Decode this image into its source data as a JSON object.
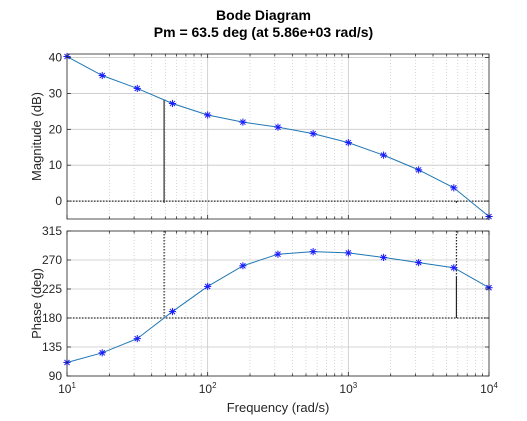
{
  "title": "Bode Diagram",
  "subtitle": "Pm = 63.5 deg (at 5.86e+03 rad/s)",
  "chart_data": [
    {
      "type": "line",
      "name": "magnitude",
      "ylabel": "Magnitude (dB)",
      "xscale": "log",
      "xlim": [
        10,
        10000
      ],
      "ylim": [
        -5,
        41
      ],
      "yticks": [
        "0",
        "10",
        "20",
        "30",
        "40"
      ],
      "ytick_values": [
        0,
        10,
        20,
        30,
        40
      ],
      "grid": true,
      "x": [
        10,
        17.8,
        31.6,
        56.2,
        100,
        178,
        316,
        562,
        1000,
        1780,
        3160,
        5620,
        10000
      ],
      "y": [
        40.3,
        35.0,
        31.4,
        27.2,
        24.0,
        22.0,
        20.6,
        18.8,
        16.3,
        12.8,
        8.7,
        3.7,
        -4.3
      ],
      "reference_line_y": 0,
      "markers": [
        {
          "x": 49,
          "y_from": -0.5,
          "y_to": 28.3,
          "style": "solid"
        },
        {
          "x": 5860,
          "y_from": 0,
          "y_to": -0.5,
          "style": "solid"
        }
      ]
    },
    {
      "type": "line",
      "name": "phase",
      "ylabel": "Phase (deg)",
      "xlabel": "Frequency  (rad/s)",
      "xscale": "log",
      "xlim": [
        10,
        10000
      ],
      "xtick_values": [
        10,
        100,
        1000,
        10000
      ],
      "xtick_bases": [
        "10",
        "10",
        "10",
        "10"
      ],
      "xtick_exponents": [
        "1",
        "2",
        "3",
        "4"
      ],
      "ylim": [
        90,
        315
      ],
      "yticks": [
        "90",
        "135",
        "180",
        "225",
        "270",
        "315"
      ],
      "ytick_values": [
        90,
        135,
        180,
        225,
        270,
        315
      ],
      "grid": true,
      "x": [
        10,
        17.8,
        31.6,
        56.2,
        100,
        178,
        316,
        562,
        1000,
        1780,
        3160,
        5620,
        10000
      ],
      "y": [
        111,
        126,
        148,
        190,
        229,
        261,
        279,
        283,
        281,
        274,
        266,
        258,
        227
      ],
      "reference_line_y": 180,
      "markers": [
        {
          "x": 49,
          "y_from": 315,
          "y_to": 180,
          "style": "dotted"
        },
        {
          "x": 5860,
          "y_from": 315,
          "y_to": 244,
          "style": "dotted"
        },
        {
          "x": 5860,
          "y_from": 244,
          "y_to": 180,
          "style": "solid"
        }
      ]
    }
  ],
  "colors": {
    "line": "#1f77b4",
    "marker": "#1a1aff",
    "grid": "#c8c8c8",
    "axes": "#262626",
    "refline": "#000000"
  }
}
